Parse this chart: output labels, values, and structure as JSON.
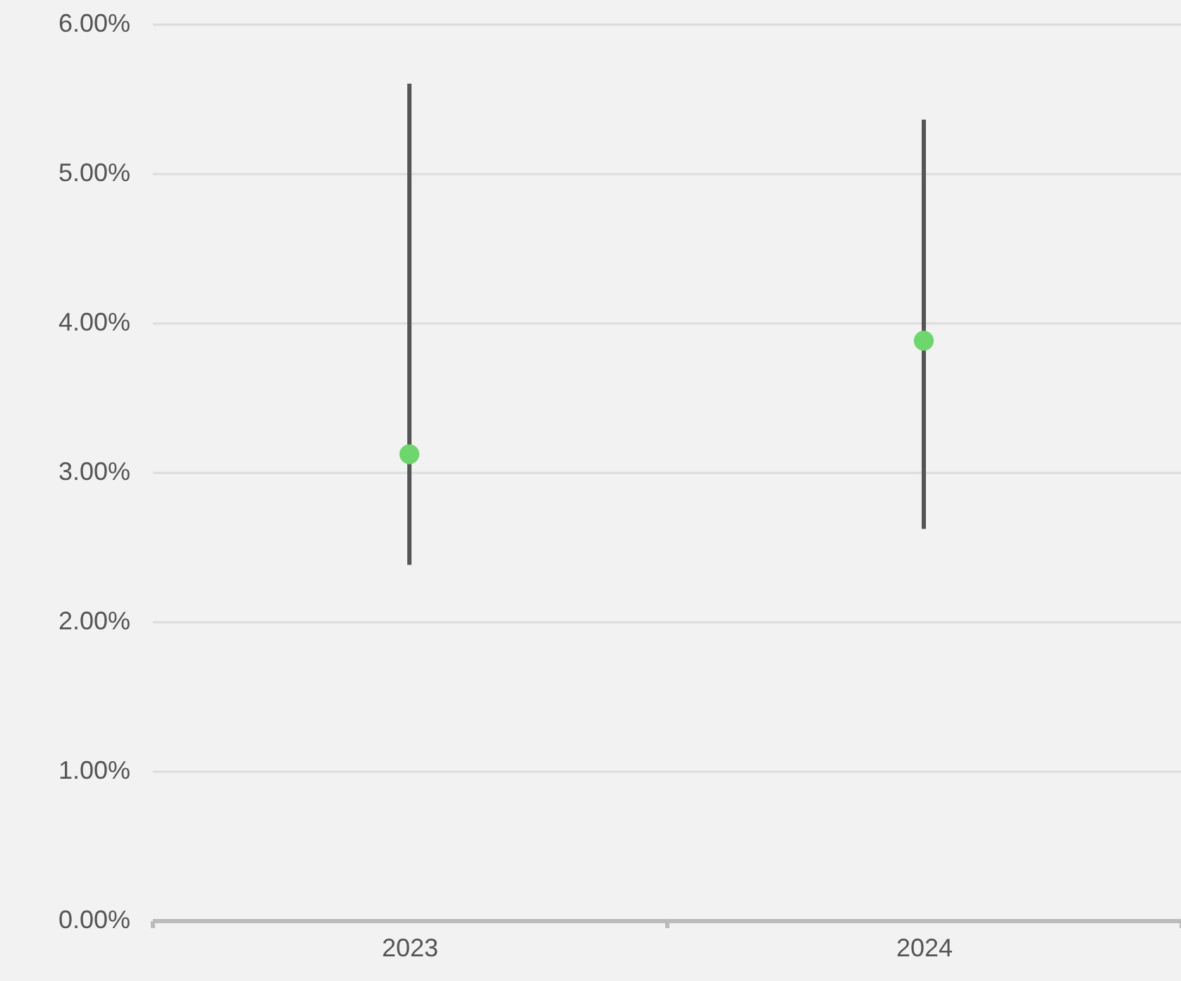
{
  "chart_data": {
    "type": "scatter",
    "categories": [
      "2023",
      "2024"
    ],
    "series": [
      {
        "color": "#6dd66d",
        "values": [
          3.12,
          3.88
        ],
        "errors": [
          [
            2.38,
            5.6
          ],
          [
            2.62,
            5.36
          ]
        ]
      }
    ],
    "ylim": [
      0,
      6
    ],
    "yticks": [
      {
        "value": 0,
        "label": "0.00%"
      },
      {
        "value": 1,
        "label": "1.00%"
      },
      {
        "value": 2,
        "label": "2.00%"
      },
      {
        "value": 3,
        "label": "3.00%"
      },
      {
        "value": 4,
        "label": "4.00%"
      },
      {
        "value": 5,
        "label": "5.00%"
      },
      {
        "value": 6,
        "label": "6.00%"
      }
    ],
    "grid": "y",
    "marker": "circle"
  }
}
